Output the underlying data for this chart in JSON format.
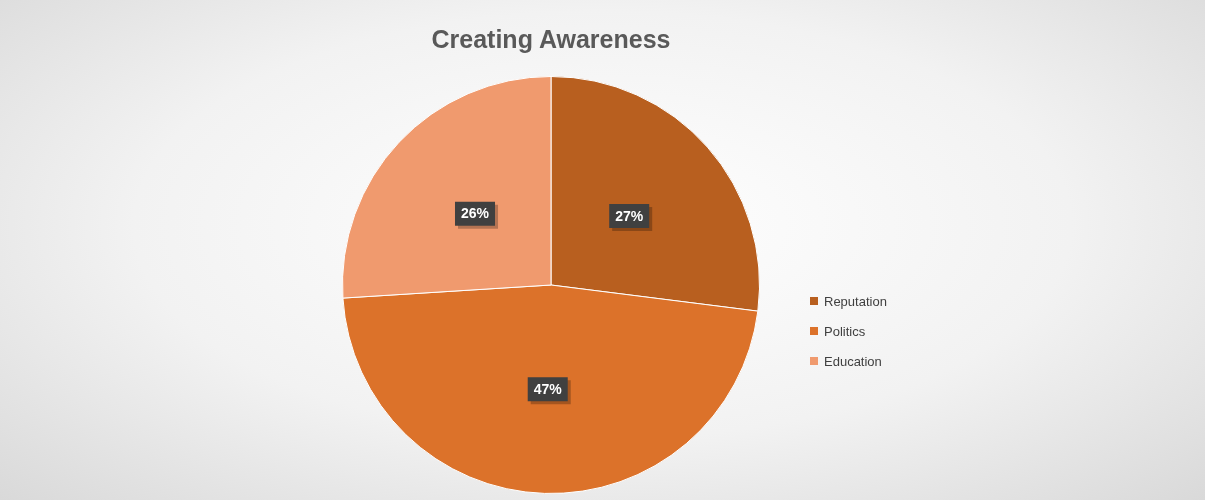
{
  "chart_data": {
    "type": "pie",
    "title": "Creating Awareness",
    "categories": [
      "Reputation",
      "Politics",
      "Education"
    ],
    "values": [
      27,
      47,
      26
    ],
    "colors": [
      "#b85f1f",
      "#dc722a",
      "#f09a6e"
    ],
    "value_labels": [
      "27%",
      "47%",
      "26%"
    ],
    "legend": "right"
  }
}
